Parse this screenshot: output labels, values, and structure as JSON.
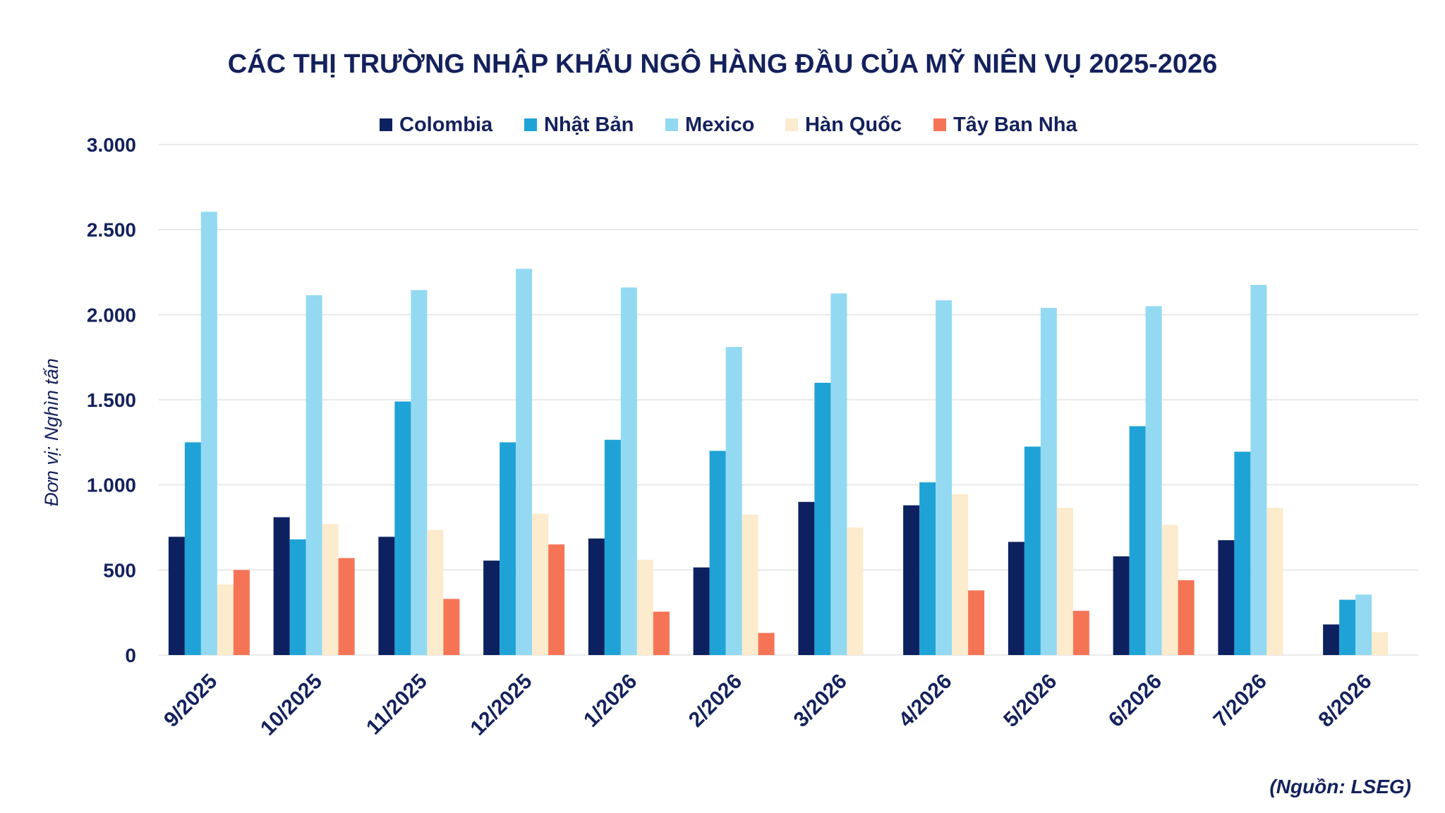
{
  "chart_data": {
    "type": "bar",
    "title": "CÁC THỊ TRƯỜNG NHẬP KHẨU NGÔ HÀNG ĐẦU CỦA MỸ NIÊN VỤ 2025-2026",
    "ylabel": "Đơn vị: Nghìn tấn",
    "xlabel": "",
    "source": "(Nguồn: LSEG)",
    "ylim": [
      0,
      3000
    ],
    "yticks": [
      0,
      500,
      1000,
      1500,
      2000,
      2500,
      3000
    ],
    "ytick_labels": [
      "0",
      "500",
      "1.000",
      "1.500",
      "2.000",
      "2.500",
      "3.000"
    ],
    "grid": true,
    "legend_position": "top",
    "categories": [
      "9/2025",
      "10/2025",
      "11/2025",
      "12/2025",
      "1/2026",
      "2/2026",
      "3/2026",
      "4/2026",
      "5/2026",
      "6/2026",
      "7/2026",
      "8/2026"
    ],
    "series": [
      {
        "name": "Colombia",
        "color": "#0d2160",
        "values": [
          695,
          810,
          695,
          555,
          685,
          515,
          900,
          880,
          665,
          580,
          675,
          180
        ]
      },
      {
        "name": "Nhật Bản",
        "color": "#1fa3d6",
        "values": [
          1250,
          680,
          1490,
          1250,
          1265,
          1200,
          1600,
          1015,
          1225,
          1345,
          1195,
          325
        ]
      },
      {
        "name": "Mexico",
        "color": "#93d9f2",
        "values": [
          2605,
          2115,
          2145,
          2270,
          2160,
          1810,
          2125,
          2085,
          2040,
          2050,
          2175,
          355
        ]
      },
      {
        "name": "Hàn Quốc",
        "color": "#fcebcc",
        "values": [
          415,
          770,
          735,
          830,
          560,
          825,
          750,
          945,
          865,
          765,
          865,
          135
        ]
      },
      {
        "name": "Tây Ban Nha",
        "color": "#f67456",
        "values": [
          500,
          570,
          330,
          650,
          255,
          130,
          null,
          380,
          260,
          440,
          null,
          null
        ]
      }
    ]
  }
}
